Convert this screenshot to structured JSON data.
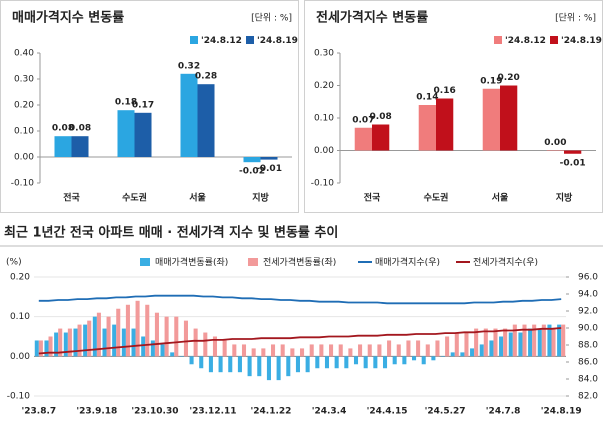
{
  "chart_data": [
    {
      "type": "bar",
      "title": "매매가격지수 변동률",
      "unit": "[단위 : %]",
      "categories": [
        "전국",
        "수도권",
        "서울",
        "지방"
      ],
      "series": [
        {
          "name": "'24.8.12",
          "color": "#2ba6e1",
          "values": [
            0.08,
            0.18,
            0.32,
            -0.02
          ],
          "value_labels": [
            "0.08",
            "0.18",
            "0.32",
            "-0.02"
          ]
        },
        {
          "name": "'24.8.19",
          "color": "#1d5ea8",
          "values": [
            0.08,
            0.17,
            0.28,
            -0.01
          ],
          "value_labels": [
            "0.08",
            "0.17",
            "0.28",
            "-0.01"
          ]
        }
      ],
      "ylim": [
        -0.1,
        0.4
      ],
      "yticks": [
        {
          "value": -0.1,
          "label": "-0.10"
        },
        {
          "value": 0,
          "label": "0.00"
        },
        {
          "value": 0.1,
          "label": "0.10"
        },
        {
          "value": 0.2,
          "label": "0.20"
        },
        {
          "value": 0.3,
          "label": "0.30"
        },
        {
          "value": 0.4,
          "label": "0.40"
        }
      ]
    },
    {
      "type": "bar",
      "title": "전세가격지수 변동률",
      "unit": "[단위 : %]",
      "categories": [
        "전국",
        "수도권",
        "서울",
        "지방"
      ],
      "series": [
        {
          "name": "'24.8.12",
          "color": "#f07c7c",
          "values": [
            0.07,
            0.14,
            0.19,
            0.0
          ],
          "value_labels": [
            "0.07",
            "0.14",
            "0.19",
            "0.00"
          ]
        },
        {
          "name": "'24.8.19",
          "color": "#c1101b",
          "values": [
            0.08,
            0.16,
            0.2,
            -0.01
          ],
          "value_labels": [
            "0.08",
            "0.16",
            "0.20",
            "-0.01"
          ]
        }
      ],
      "ylim": [
        -0.1,
        0.3
      ],
      "yticks": [
        {
          "value": -0.1,
          "label": "-0.10"
        },
        {
          "value": 0,
          "label": "0.00"
        },
        {
          "value": 0.1,
          "label": "0.10"
        },
        {
          "value": 0.2,
          "label": "0.20"
        },
        {
          "value": 0.3,
          "label": "0.30"
        }
      ]
    },
    {
      "type": "combo",
      "title": "최근 1년간 전국 아파트 매매 · 전세가격 지수 및 변동률 추이",
      "y_label": "(%)",
      "categories": [
        "'23.8.7",
        null,
        null,
        null,
        null,
        null,
        "'23.9.18",
        null,
        null,
        null,
        null,
        null,
        "'23.10.30",
        null,
        null,
        null,
        null,
        null,
        "'23.12.11",
        null,
        null,
        null,
        null,
        null,
        "'24.1.22",
        null,
        null,
        null,
        null,
        null,
        "'24.3.4",
        null,
        null,
        null,
        null,
        null,
        "'24.4.15",
        null,
        null,
        null,
        null,
        null,
        "'24.5.27",
        null,
        null,
        null,
        null,
        null,
        "'24.7.8",
        null,
        null,
        null,
        null,
        null,
        "'24.8.19"
      ],
      "series": [
        {
          "name": "매매가격변동률(좌)",
          "kind": "bar",
          "color": "#3aaee3",
          "values": [
            0.04,
            0.04,
            0.06,
            0.06,
            0.07,
            0.08,
            0.1,
            0.07,
            0.08,
            0.07,
            0.07,
            0.05,
            0.04,
            0.03,
            0.01,
            0.0,
            -0.02,
            -0.03,
            -0.04,
            -0.04,
            -0.04,
            -0.04,
            -0.05,
            -0.05,
            -0.06,
            -0.06,
            -0.05,
            -0.04,
            -0.04,
            -0.03,
            -0.03,
            -0.03,
            -0.03,
            -0.02,
            -0.03,
            -0.03,
            -0.03,
            -0.02,
            -0.02,
            -0.01,
            -0.02,
            -0.01,
            0.0,
            0.01,
            0.01,
            0.02,
            0.03,
            0.04,
            0.05,
            0.06,
            0.06,
            0.07,
            0.07,
            0.08,
            0.08
          ]
        },
        {
          "name": "전세가격변동률(좌)",
          "kind": "bar",
          "color": "#f29a9a",
          "values": [
            0.04,
            0.05,
            0.07,
            0.07,
            0.08,
            0.09,
            0.11,
            0.1,
            0.12,
            0.13,
            0.14,
            0.13,
            0.11,
            0.1,
            0.1,
            0.09,
            0.07,
            0.06,
            0.05,
            0.04,
            0.03,
            0.03,
            0.02,
            0.02,
            0.03,
            0.03,
            0.02,
            0.02,
            0.03,
            0.03,
            0.03,
            0.03,
            0.02,
            0.03,
            0.03,
            0.03,
            0.04,
            0.03,
            0.04,
            0.04,
            0.03,
            0.04,
            0.05,
            0.06,
            0.06,
            0.07,
            0.07,
            0.07,
            0.07,
            0.08,
            0.08,
            0.08,
            0.08,
            0.07,
            0.08
          ]
        },
        {
          "name": "매매가격지수(우)",
          "kind": "line",
          "axis": "y2",
          "color": "#1f6db5",
          "values": [
            93.2,
            93.2,
            93.3,
            93.3,
            93.4,
            93.4,
            93.5,
            93.5,
            93.6,
            93.6,
            93.7,
            93.7,
            93.8,
            93.8,
            93.8,
            93.8,
            93.8,
            93.7,
            93.7,
            93.6,
            93.6,
            93.5,
            93.5,
            93.4,
            93.4,
            93.3,
            93.3,
            93.2,
            93.2,
            93.1,
            93.1,
            93.1,
            93.0,
            93.0,
            93.0,
            93.0,
            92.9,
            92.9,
            92.9,
            92.9,
            92.9,
            92.9,
            92.9,
            92.9,
            92.9,
            93.0,
            93.0,
            93.0,
            93.1,
            93.1,
            93.2,
            93.2,
            93.3,
            93.3,
            93.4
          ]
        },
        {
          "name": "전세가격지수(우)",
          "kind": "line",
          "axis": "y2",
          "color": "#a3171e",
          "values": [
            87.0,
            87.1,
            87.1,
            87.2,
            87.3,
            87.4,
            87.5,
            87.6,
            87.7,
            87.8,
            87.9,
            88.0,
            88.1,
            88.2,
            88.3,
            88.4,
            88.5,
            88.5,
            88.6,
            88.6,
            88.7,
            88.7,
            88.7,
            88.8,
            88.8,
            88.8,
            88.8,
            88.9,
            88.9,
            88.9,
            89.0,
            89.0,
            89.0,
            89.1,
            89.1,
            89.1,
            89.2,
            89.2,
            89.2,
            89.3,
            89.3,
            89.3,
            89.4,
            89.4,
            89.5,
            89.5,
            89.6,
            89.6,
            89.7,
            89.7,
            89.8,
            89.8,
            89.9,
            89.9,
            90.0
          ]
        }
      ],
      "ylim": [
        -0.1,
        0.2
      ],
      "yticks": [
        {
          "value": -0.1,
          "label": "-0.10"
        },
        {
          "value": 0,
          "label": "0.00"
        },
        {
          "value": 0.1,
          "label": "0.10"
        },
        {
          "value": 0.2,
          "label": "0.20"
        }
      ],
      "y2lim": [
        82,
        96
      ],
      "y2ticks": [
        {
          "value": 82,
          "label": "82.0"
        },
        {
          "value": 84,
          "label": "84.0"
        },
        {
          "value": 86,
          "label": "86.0"
        },
        {
          "value": 88,
          "label": "88.0"
        },
        {
          "value": 90,
          "label": "90.0"
        },
        {
          "value": 92,
          "label": "92.0"
        },
        {
          "value": 94,
          "label": "94.0"
        },
        {
          "value": 96,
          "label": "96.0"
        }
      ]
    }
  ]
}
